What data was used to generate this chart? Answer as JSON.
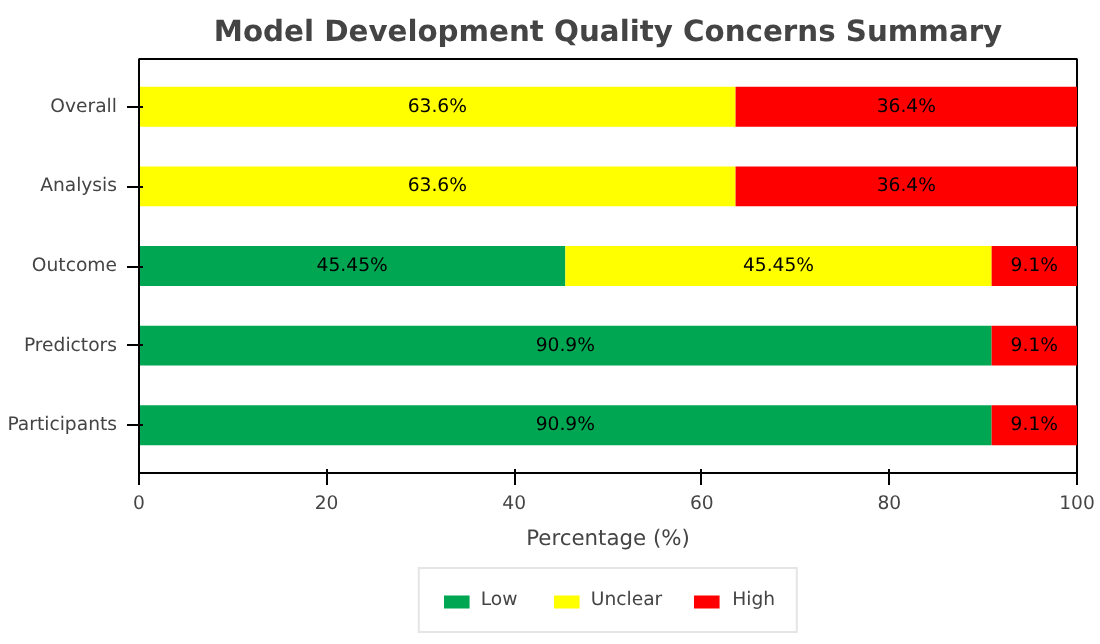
{
  "chart_data": {
    "type": "bar",
    "orientation": "horizontal",
    "stacked": true,
    "title": "Model Development Quality Concerns Summary",
    "xlabel": "Percentage (%)",
    "categories": [
      "Overall",
      "Analysis",
      "Outcome",
      "Predictors",
      "Participants"
    ],
    "series": [
      {
        "name": "Low",
        "color": "#00a651",
        "values": [
          0,
          0,
          45.45,
          90.9,
          90.9
        ],
        "value_labels": [
          null,
          null,
          "45.45%",
          "90.9%",
          "90.9%"
        ]
      },
      {
        "name": "Unclear",
        "color": "#ffff00",
        "values": [
          63.6,
          63.6,
          45.45,
          0,
          0
        ],
        "value_labels": [
          "63.6%",
          "63.6%",
          "45.45%",
          null,
          null
        ]
      },
      {
        "name": "High",
        "color": "#ff0000",
        "values": [
          36.4,
          36.4,
          9.1,
          9.1,
          9.1
        ],
        "value_labels": [
          "36.4%",
          "36.4%",
          "9.1%",
          "9.1%",
          "9.1%"
        ]
      }
    ],
    "xlim": [
      0,
      100
    ],
    "xticks": [
      0,
      20,
      40,
      60,
      80,
      100
    ],
    "grid": false,
    "legend": "bottom"
  }
}
